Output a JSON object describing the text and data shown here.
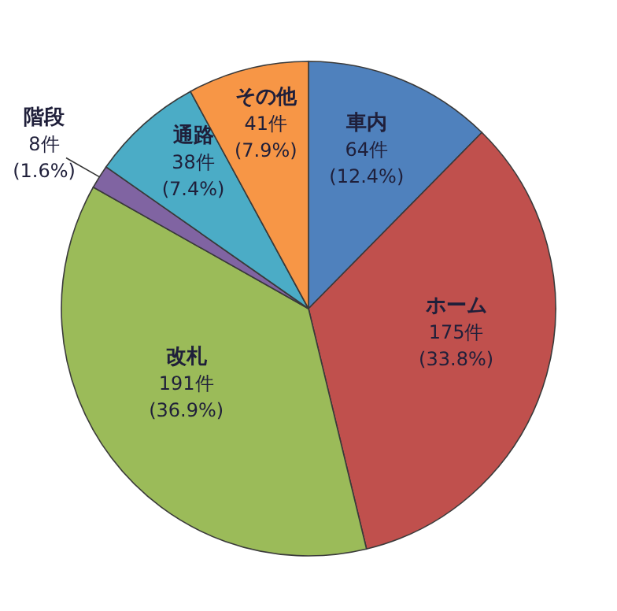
{
  "chart_data": {
    "type": "pie",
    "categories": [
      "車内",
      "ホーム",
      "改札",
      "階段",
      "通路",
      "その他"
    ],
    "values": [
      64,
      175,
      191,
      8,
      38,
      41
    ],
    "colors": [
      "#4f81bd",
      "#c0504d",
      "#9bbb59",
      "#8064a2",
      "#4bacc6",
      "#f79646"
    ],
    "value_labels": [
      "64件\n(12.4%)",
      "175件\n(33.8%)",
      "191件\n(36.9%)",
      "8件\n(1.6%)",
      "38件\n(7.4%)",
      "41件\n(7.9%)"
    ]
  }
}
